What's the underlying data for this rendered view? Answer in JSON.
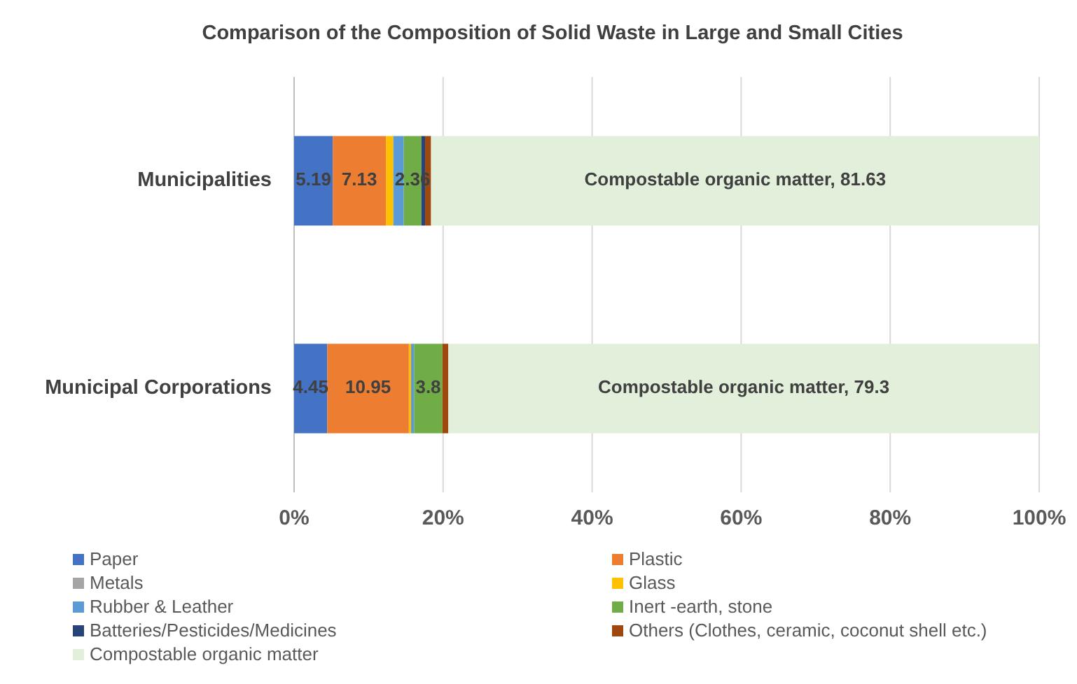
{
  "chart_data": {
    "type": "bar",
    "orientation": "horizontal",
    "stacked": true,
    "title": "Comparison of the Composition of Solid Waste in Large and Small Cities",
    "categories": [
      "Municipalities",
      "Municipal Corporations"
    ],
    "series": [
      {
        "name": "Paper",
        "color": "#4472c4",
        "values": [
          5.19,
          4.45
        ],
        "value_labels": [
          "5.19",
          "4.45"
        ]
      },
      {
        "name": "Plastic",
        "color": "#ed7d31",
        "values": [
          7.13,
          10.95
        ],
        "value_labels": [
          "7.13",
          "10.95"
        ]
      },
      {
        "name": "Metals",
        "color": "#a5a5a5",
        "values": [
          0,
          0
        ]
      },
      {
        "name": "Glass",
        "color": "#ffc000",
        "values": [
          1.0,
          0.3
        ]
      },
      {
        "name": "Rubber & Leather",
        "color": "#5b9bd5",
        "values": [
          1.4,
          0.4
        ]
      },
      {
        "name": "Inert -earth, stone",
        "color": "#70ad47",
        "values": [
          2.36,
          3.8
        ],
        "value_labels": [
          "2.36",
          "3.8"
        ]
      },
      {
        "name": "Batteries/Pesticides/Medicines",
        "color": "#264478",
        "values": [
          0.5,
          0
        ]
      },
      {
        "name": "Others (Clothes, ceramic, coconut shell etc.)",
        "color": "#9e480e",
        "values": [
          0.8,
          0.8
        ]
      },
      {
        "name": "Compostable organic matter",
        "color": "#e2efda",
        "values": [
          81.63,
          79.3
        ],
        "value_labels": [
          "Compostable organic matter, 81.63",
          "Compostable organic matter, 79.3"
        ]
      }
    ],
    "xlim": [
      0,
      100
    ],
    "xticks": [
      {
        "value": 0,
        "label": "0%"
      },
      {
        "value": 20,
        "label": "20%"
      },
      {
        "value": 40,
        "label": "40%"
      },
      {
        "value": 60,
        "label": "60%"
      },
      {
        "value": 80,
        "label": "80%"
      },
      {
        "value": 100,
        "label": "100%"
      }
    ],
    "grid": "x",
    "legend": "bottom"
  }
}
